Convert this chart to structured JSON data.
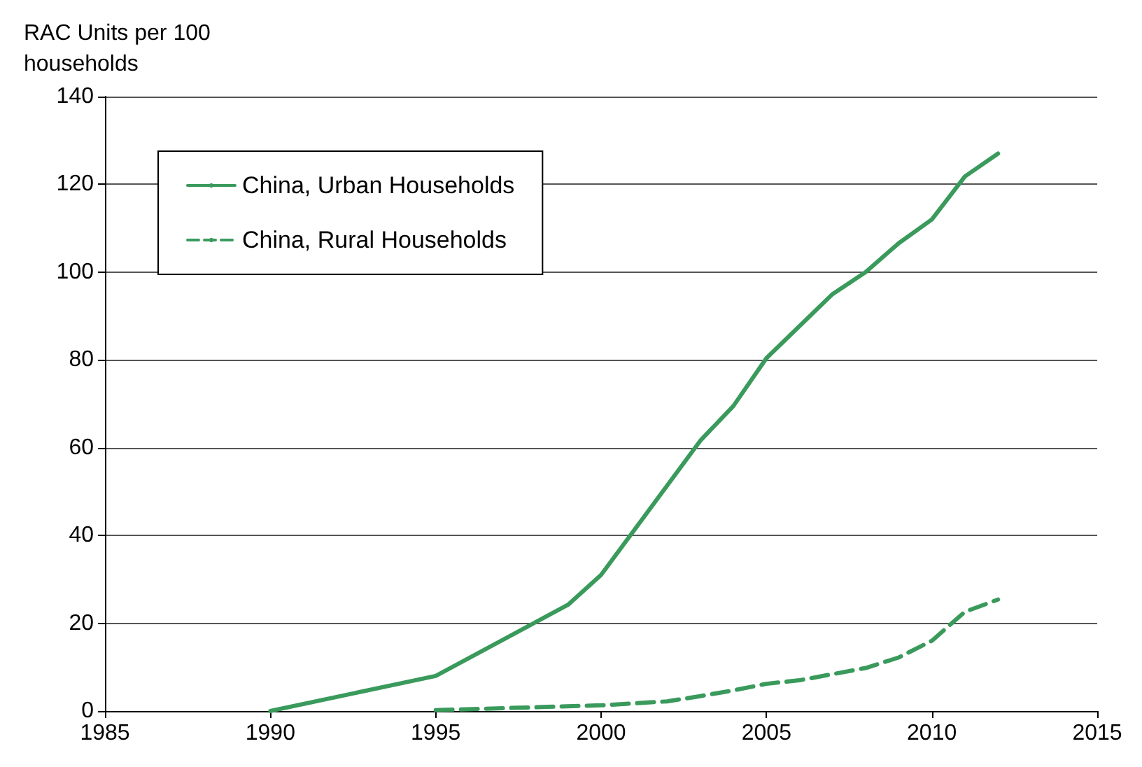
{
  "chart_data": {
    "type": "line",
    "ylabel": "RAC Units per 100 households",
    "xlim": [
      1985,
      2015
    ],
    "xticks": [
      1985,
      1990,
      1995,
      2000,
      2005,
      2010,
      2015
    ],
    "ylim": [
      0,
      140
    ],
    "yticks": [
      0,
      20,
      40,
      60,
      80,
      100,
      120,
      140
    ],
    "grid": "y",
    "legend": "top left",
    "marker": "none",
    "series": [
      {
        "name": "China, Urban Households",
        "color": "#3a9a5c",
        "line_style": "solid",
        "x": [
          1990,
          1995,
          1999,
          2000,
          2003,
          2004,
          2005,
          2007,
          2008,
          2009,
          2010,
          2011,
          2012
        ],
        "values": [
          0,
          8,
          24.2,
          31,
          61.6,
          69.5,
          80.4,
          95,
          100,
          106.6,
          112,
          121.8,
          127
        ]
      },
      {
        "name": "China, Rural Households",
        "color": "#3a9a5c",
        "line_style": "dashed",
        "x": [
          1995,
          2000,
          2002,
          2003,
          2004,
          2005,
          2006,
          2007,
          2008,
          2009,
          2010,
          2011,
          2012
        ],
        "values": [
          0.2,
          1.3,
          2.2,
          3.4,
          4.7,
          6.2,
          7,
          8.4,
          9.8,
          12.2,
          16,
          22.6,
          25.4
        ]
      }
    ]
  }
}
